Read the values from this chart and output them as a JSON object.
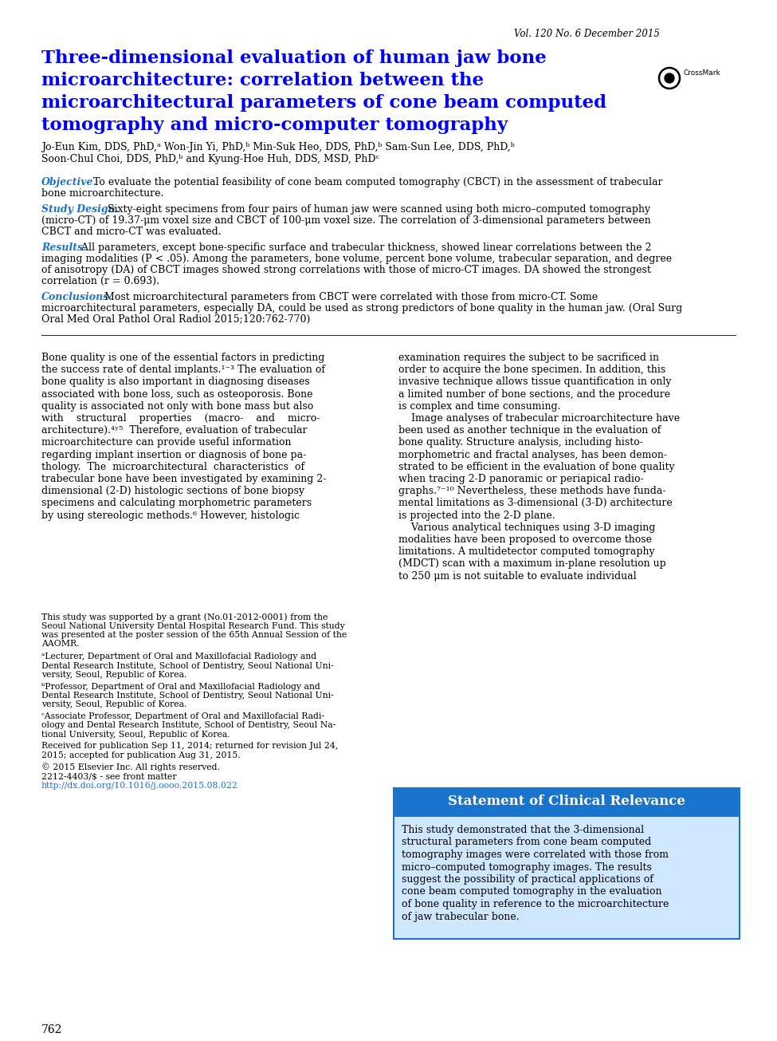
{
  "vol_label": "Vol. 120 No. 6 December 2015",
  "title_line1": "Three-dimensional evaluation of human jaw bone",
  "title_line2": "microarchitecture: correlation between the",
  "title_line3": "microarchitectural parameters of cone beam computed",
  "title_line4": "tomography and micro-computer tomography",
  "authors_line1": "Jo-Eun Kim, DDS, PhD,ᵃ Won-Jin Yi, PhD,ᵇ Min-Suk Heo, DDS, PhD,ᵇ Sam-Sun Lee, DDS, PhD,ᵇ",
  "authors_line2": "Soon-Chul Choi, DDS, PhD,ᵇ and Kyung-Hoe Huh, DDS, MSD, PhDᶜ",
  "page_number": "762",
  "box_title": "Statement of Clinical Relevance",
  "box_text_lines": [
    "This study demonstrated that the 3-dimensional",
    "structural parameters from cone beam computed",
    "tomography images were correlated with those from",
    "micro–computed tomography images. The results",
    "suggest the possibility of practical applications of",
    "cone beam computed tomography in the evaluation",
    "of bone quality in reference to the microarchitecture",
    "of jaw trabecular bone."
  ],
  "title_color": "#0000FF",
  "label_color": "#1874CD",
  "link_color": "#1874CD",
  "box_bg_color": "#1874CD",
  "box_title_color": "#FFFFFF",
  "body_text_color": "#000000",
  "bg_color": "#FFFFFF",
  "vol_color": "#000000"
}
